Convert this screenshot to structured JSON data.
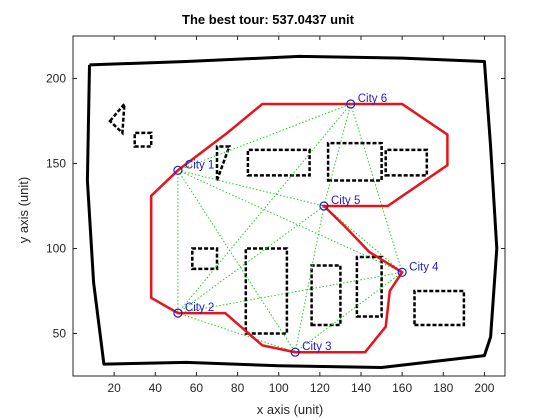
{
  "chart_data": {
    "type": "scatter",
    "title": "The best tour: 537.0437 unit",
    "xlabel": "x axis (unit)",
    "ylabel": "y axis (unit)",
    "xlim": [
      0,
      210
    ],
    "ylim": [
      25,
      225
    ],
    "xticks": [
      20,
      40,
      60,
      80,
      100,
      120,
      140,
      160,
      180,
      200
    ],
    "yticks": [
      50,
      100,
      150,
      200
    ],
    "grid": false,
    "colors": {
      "tour": "#e8141b",
      "city": "#1f1fc8",
      "roadmap": "#22cc22",
      "map": "#000000",
      "axes": "#262626"
    },
    "cities": [
      {
        "name": "City 1",
        "x": 51,
        "y": 146
      },
      {
        "name": "City 2",
        "x": 51,
        "y": 62
      },
      {
        "name": "City 3",
        "x": 108,
        "y": 39
      },
      {
        "name": "City 4",
        "x": 160,
        "y": 86
      },
      {
        "name": "City 5",
        "x": 122,
        "y": 125
      },
      {
        "name": "City 6",
        "x": 135,
        "y": 185
      }
    ],
    "tour_path": [
      [
        51,
        146
      ],
      [
        38,
        131
      ],
      [
        38,
        71
      ],
      [
        51,
        62
      ],
      [
        74,
        62
      ],
      [
        92,
        43
      ],
      [
        108,
        39
      ],
      [
        142,
        39
      ],
      [
        152,
        54
      ],
      [
        154,
        75
      ],
      [
        160,
        86
      ],
      [
        144,
        98
      ],
      [
        133,
        112
      ],
      [
        122,
        125
      ],
      [
        153,
        125
      ],
      [
        182,
        149
      ],
      [
        182,
        167
      ],
      [
        160,
        185
      ],
      [
        135,
        185
      ],
      [
        92,
        185
      ],
      [
        75,
        168
      ],
      [
        51,
        146
      ]
    ],
    "roadmap_edges": [
      [
        [
          51,
          146
        ],
        [
          122,
          125
        ]
      ],
      [
        [
          51,
          146
        ],
        [
          51,
          62
        ]
      ],
      [
        [
          51,
          146
        ],
        [
          108,
          39
        ]
      ],
      [
        [
          51,
          146
        ],
        [
          135,
          185
        ]
      ],
      [
        [
          51,
          146
        ],
        [
          160,
          86
        ]
      ],
      [
        [
          51,
          62
        ],
        [
          122,
          125
        ]
      ],
      [
        [
          51,
          62
        ],
        [
          108,
          39
        ]
      ],
      [
        [
          51,
          62
        ],
        [
          160,
          86
        ]
      ],
      [
        [
          108,
          39
        ],
        [
          122,
          125
        ]
      ],
      [
        [
          108,
          39
        ],
        [
          160,
          86
        ]
      ],
      [
        [
          122,
          125
        ],
        [
          160,
          86
        ]
      ],
      [
        [
          122,
          125
        ],
        [
          135,
          185
        ]
      ],
      [
        [
          135,
          185
        ],
        [
          160,
          86
        ]
      ],
      [
        [
          51,
          62
        ],
        [
          135,
          185
        ]
      ]
    ],
    "map_outline": [
      [
        8,
        208
      ],
      [
        55,
        210
      ],
      [
        110,
        213
      ],
      [
        160,
        212
      ],
      [
        200,
        210
      ],
      [
        203,
        160
      ],
      [
        206,
        100
      ],
      [
        203,
        48
      ],
      [
        200,
        37
      ],
      [
        150,
        30
      ],
      [
        100,
        31
      ],
      [
        55,
        33
      ],
      [
        15,
        32
      ],
      [
        10,
        80
      ],
      [
        7,
        140
      ],
      [
        8,
        208
      ]
    ],
    "map_blocks": [
      [
        [
          70,
          140
        ],
        [
          76,
          160
        ],
        [
          70,
          160
        ]
      ],
      [
        [
          85,
          143
        ],
        [
          115,
          143
        ],
        [
          115,
          158
        ],
        [
          85,
          158
        ]
      ],
      [
        [
          124,
          140
        ],
        [
          150,
          140
        ],
        [
          150,
          162
        ],
        [
          124,
          162
        ]
      ],
      [
        [
          152,
          143
        ],
        [
          172,
          143
        ],
        [
          172,
          158
        ],
        [
          152,
          158
        ]
      ],
      [
        [
          58,
          88
        ],
        [
          70,
          88
        ],
        [
          70,
          100
        ],
        [
          58,
          100
        ]
      ],
      [
        [
          84,
          50
        ],
        [
          104,
          50
        ],
        [
          104,
          100
        ],
        [
          84,
          100
        ]
      ],
      [
        [
          116,
          55
        ],
        [
          130,
          55
        ],
        [
          130,
          90
        ],
        [
          116,
          90
        ]
      ],
      [
        [
          138,
          60
        ],
        [
          150,
          60
        ],
        [
          150,
          95
        ],
        [
          138,
          95
        ]
      ],
      [
        [
          166,
          55
        ],
        [
          190,
          55
        ],
        [
          190,
          75
        ],
        [
          166,
          75
        ]
      ],
      [
        [
          18,
          175
        ],
        [
          25,
          185
        ],
        [
          24,
          168
        ]
      ],
      [
        [
          30,
          160
        ],
        [
          38,
          160
        ],
        [
          38,
          168
        ],
        [
          30,
          168
        ]
      ]
    ]
  }
}
